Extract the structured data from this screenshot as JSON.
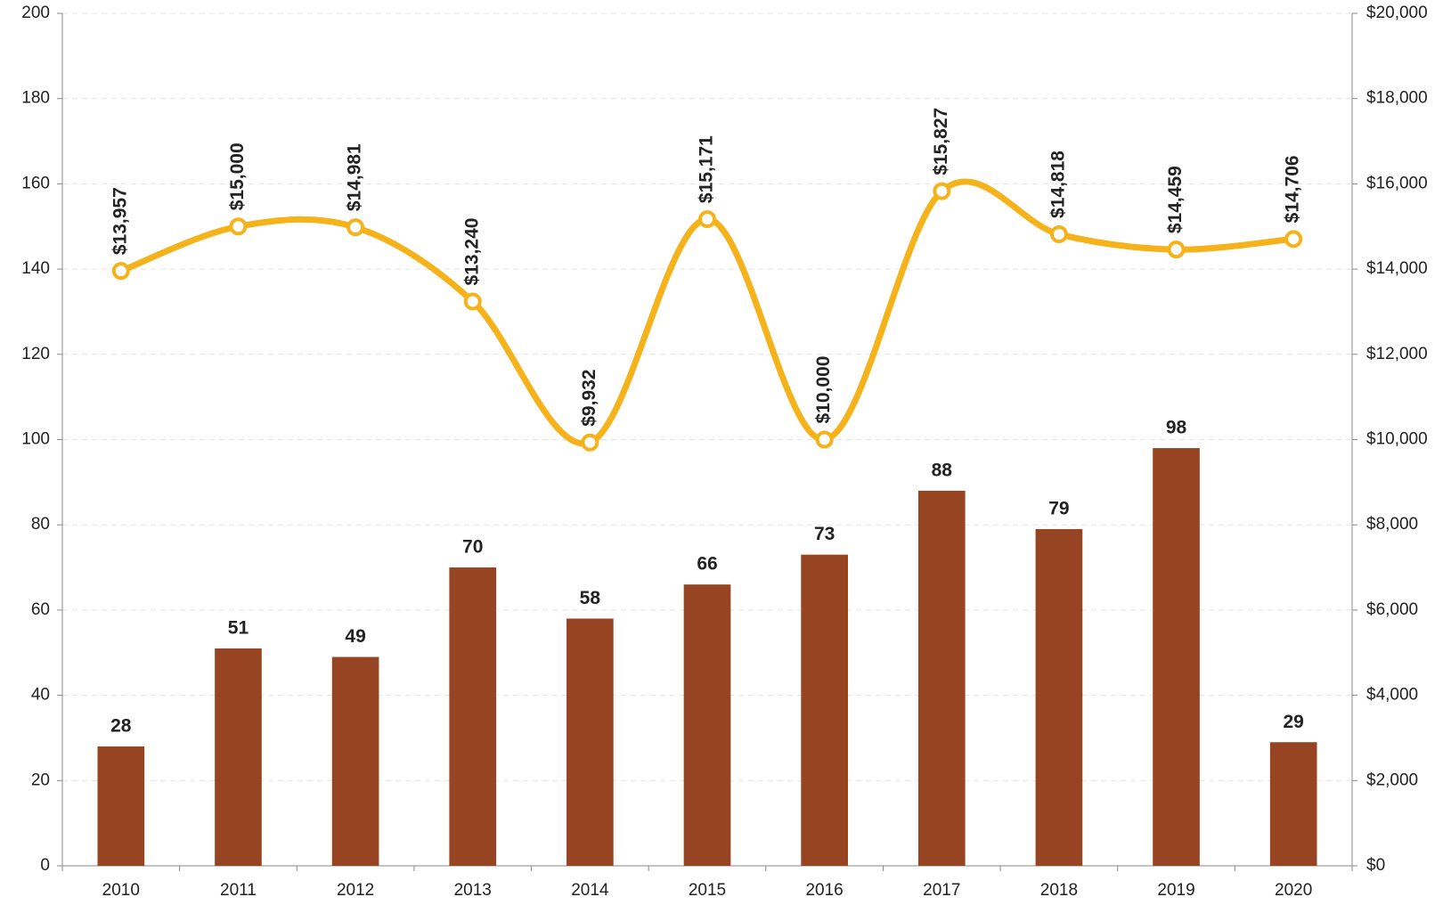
{
  "chart_data": {
    "type": "combo",
    "categories": [
      "2010",
      "2011",
      "2012",
      "2013",
      "2014",
      "2015",
      "2016",
      "2017",
      "2018",
      "2019",
      "2020"
    ],
    "series": [
      {
        "type": "bar",
        "color": "#964421",
        "values": [
          28,
          51,
          49,
          70,
          58,
          66,
          73,
          88,
          79,
          98,
          29
        ]
      },
      {
        "type": "line",
        "axis": "y2",
        "color": "#f5b21a",
        "smooth": true,
        "values": [
          13957,
          15000,
          14981,
          13240,
          9932,
          15171,
          10000,
          15827,
          14818,
          14459,
          14706
        ],
        "value_labels": [
          "$13,957",
          "$15,000",
          "$14,981",
          "$13,240",
          "$9,932",
          "$15,171",
          "$10,000",
          "$15,827",
          "$14,818",
          "$14,459",
          "$14,706"
        ]
      }
    ],
    "ylim": [
      0,
      200
    ],
    "yticks": [
      0,
      20,
      40,
      60,
      80,
      100,
      120,
      140,
      160,
      180,
      200
    ],
    "y2lim": [
      0,
      20000
    ],
    "y2ticks": [
      {
        "value": 0,
        "label": "$0"
      },
      {
        "value": 2000,
        "label": "$2,000"
      },
      {
        "value": 4000,
        "label": "$4,000"
      },
      {
        "value": 6000,
        "label": "$6,000"
      },
      {
        "value": 8000,
        "label": "$8,000"
      },
      {
        "value": 10000,
        "label": "$10,000"
      },
      {
        "value": 12000,
        "label": "$12,000"
      },
      {
        "value": 14000,
        "label": "$14,000"
      },
      {
        "value": 16000,
        "label": "$16,000"
      },
      {
        "value": 18000,
        "label": "$18,000"
      },
      {
        "value": 20000,
        "label": "$20,000"
      }
    ],
    "grid": true
  }
}
